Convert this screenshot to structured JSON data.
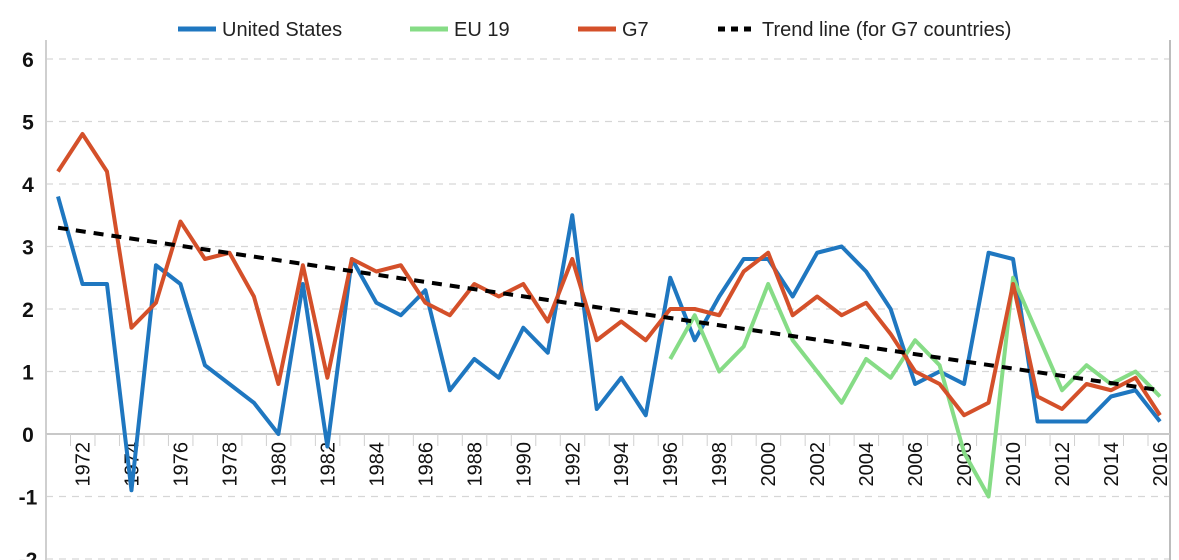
{
  "chart_data": {
    "type": "line",
    "title": "",
    "xlabel": "",
    "ylabel": "",
    "ylim": [
      -2,
      6
    ],
    "yticks": [
      -2,
      -1,
      0,
      1,
      2,
      3,
      4,
      5,
      6
    ],
    "xlim": [
      1971,
      2016
    ],
    "xtick_labels": [
      "1972",
      "1974",
      "1976",
      "1978",
      "1980",
      "1982",
      "1984",
      "1986",
      "1988",
      "1990",
      "1992",
      "1994",
      "1996",
      "1998",
      "2000",
      "2002",
      "2004",
      "2006",
      "2008",
      "2010",
      "2012",
      "2014",
      "2016"
    ],
    "grid": "horizontal dashed",
    "legend_position": "top",
    "series": [
      {
        "name": "United States",
        "color": "#1f77c0",
        "start_year": 1971,
        "values": [
          3.8,
          2.4,
          2.4,
          -0.9,
          2.7,
          2.4,
          1.1,
          0.8,
          0.5,
          0.0,
          2.4,
          -0.2,
          2.8,
          2.1,
          1.9,
          2.3,
          0.7,
          1.2,
          0.9,
          1.7,
          1.3,
          3.5,
          0.4,
          0.9,
          0.3,
          2.5,
          1.5,
          2.2,
          2.8,
          2.8,
          2.2,
          2.9,
          3.0,
          2.6,
          2.0,
          0.8,
          1.0,
          0.8,
          2.9,
          2.8,
          0.2,
          0.2,
          0.2,
          0.6,
          0.7,
          0.2
        ]
      },
      {
        "name": "EU 19",
        "color": "#86dc86",
        "start_year": 1996,
        "values": [
          1.2,
          1.9,
          1.0,
          1.4,
          2.4,
          1.5,
          1.0,
          0.5,
          1.2,
          0.9,
          1.5,
          1.1,
          -0.3,
          -1.0,
          2.5,
          1.6,
          0.7,
          1.1,
          0.8,
          1.0,
          0.6
        ]
      },
      {
        "name": "G7",
        "color": "#d4502a",
        "start_year": 1971,
        "values": [
          4.2,
          4.8,
          4.2,
          1.7,
          2.1,
          3.4,
          2.8,
          2.9,
          2.2,
          0.8,
          2.7,
          0.9,
          2.8,
          2.6,
          2.7,
          2.1,
          1.9,
          2.4,
          2.2,
          2.4,
          1.8,
          2.8,
          1.5,
          1.8,
          1.5,
          2.0,
          2.0,
          1.9,
          2.6,
          2.9,
          1.9,
          2.2,
          1.9,
          2.1,
          1.6,
          1.0,
          0.8,
          0.3,
          0.5,
          2.4,
          0.6,
          0.4,
          0.8,
          0.7,
          0.9,
          0.3
        ]
      },
      {
        "name": "Trend line (for G7 countries)",
        "color": "#000000",
        "dashed": true,
        "x": [
          1971,
          2016
        ],
        "values": [
          3.3,
          0.7
        ]
      }
    ]
  }
}
